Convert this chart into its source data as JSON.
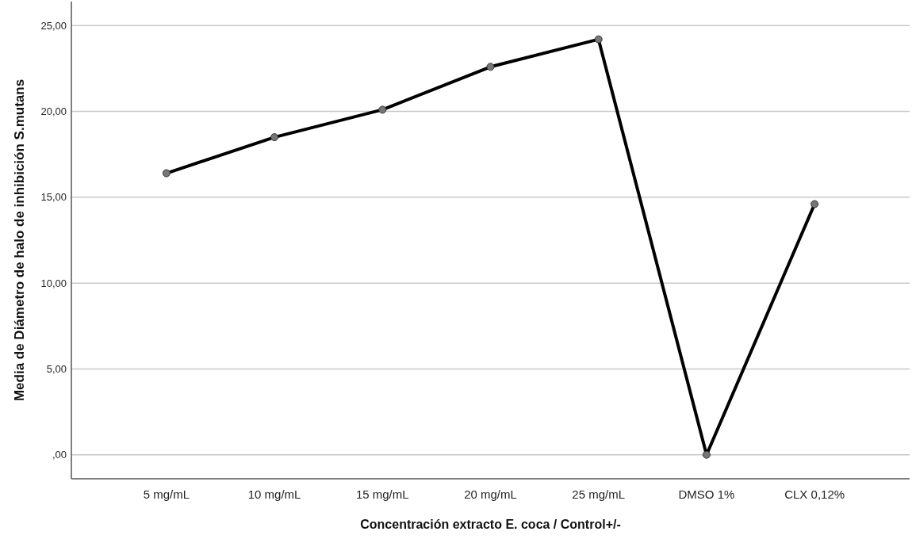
{
  "chart_data": {
    "type": "line",
    "xlabel": "Concentración extracto E. coca / Control+/-",
    "ylabel": "Media de Diámetro de halo de inhibición S.mutans",
    "categories": [
      "5 mg/mL",
      "10 mg/mL",
      "15 mg/mL",
      "20 mg/mL",
      "25 mg/mL",
      "DMSO 1%",
      "CLX 0,12%"
    ],
    "series": [
      {
        "color": "#000000",
        "values": [
          16.4,
          18.5,
          20.1,
          22.6,
          24.2,
          0,
          14.6
        ]
      }
    ],
    "ylim": [
      -1.4,
      26.4
    ],
    "yticks": [
      {
        "value": 0,
        "label": ",00"
      },
      {
        "value": 5,
        "label": "5,00"
      },
      {
        "value": 10,
        "label": "10,00"
      },
      {
        "value": 15,
        "label": "15,00"
      },
      {
        "value": 20,
        "label": "20,00"
      },
      {
        "value": 25,
        "label": "25,00"
      }
    ],
    "grid": "y",
    "marker": "circle",
    "line_style": "solid"
  }
}
